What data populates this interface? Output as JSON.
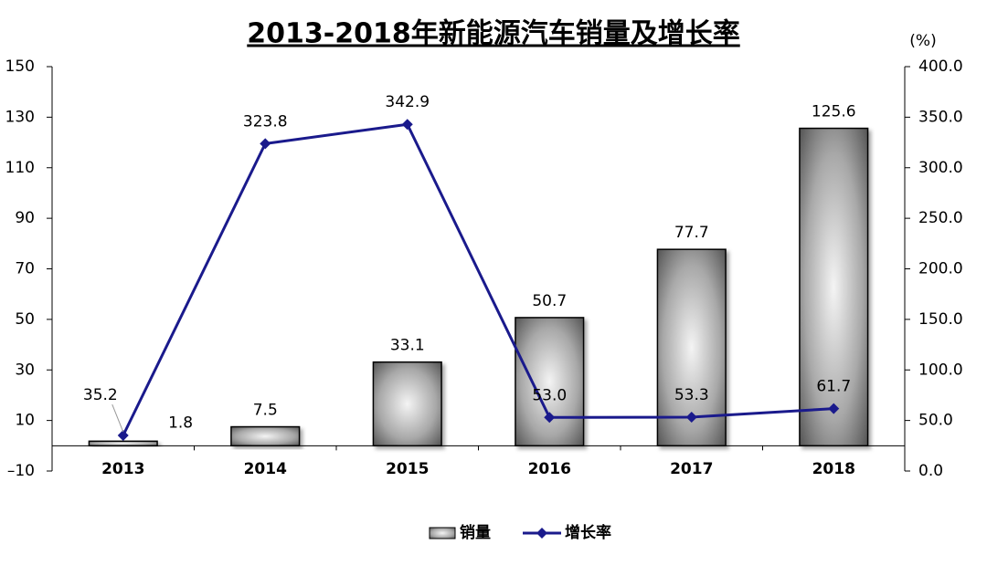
{
  "chart_data": {
    "type": "bar-line",
    "title": "2013-2018年新能源汽车销量及增长率",
    "y2_label": "(%)",
    "categories": [
      "2013",
      "2014",
      "2015",
      "2016",
      "2017",
      "2018"
    ],
    "series": [
      {
        "name": "销量",
        "type": "bar",
        "color": "#808080",
        "values": [
          1.8,
          7.5,
          33.1,
          50.7,
          77.7,
          125.6
        ]
      },
      {
        "name": "增长率",
        "type": "line",
        "axis": "y2",
        "color": "#1a1a8c",
        "values": [
          35.2,
          323.8,
          342.9,
          53.0,
          53.3,
          61.7
        ],
        "value_labels": [
          "35.2",
          "323.8",
          "342.9",
          "53.0",
          "53.3",
          "61.7"
        ]
      }
    ],
    "ylim": [
      -10,
      150
    ],
    "yticks": [
      {
        "value": -10,
        "label": "–10"
      },
      10,
      30,
      50,
      70,
      90,
      110,
      130,
      150
    ],
    "y2lim": [
      0,
      400
    ],
    "y2ticks": [
      {
        "value": 0,
        "label": "0.0"
      },
      {
        "value": 50,
        "label": "50.0"
      },
      {
        "value": 100,
        "label": "100.0"
      },
      {
        "value": 150,
        "label": "150.0"
      },
      {
        "value": 200,
        "label": "200.0"
      },
      {
        "value": 250,
        "label": "250.0"
      },
      {
        "value": 300,
        "label": "300.0"
      },
      {
        "value": 350,
        "label": "350.0"
      },
      {
        "value": 400,
        "label": "400.0"
      }
    ],
    "legend": "bottom"
  }
}
